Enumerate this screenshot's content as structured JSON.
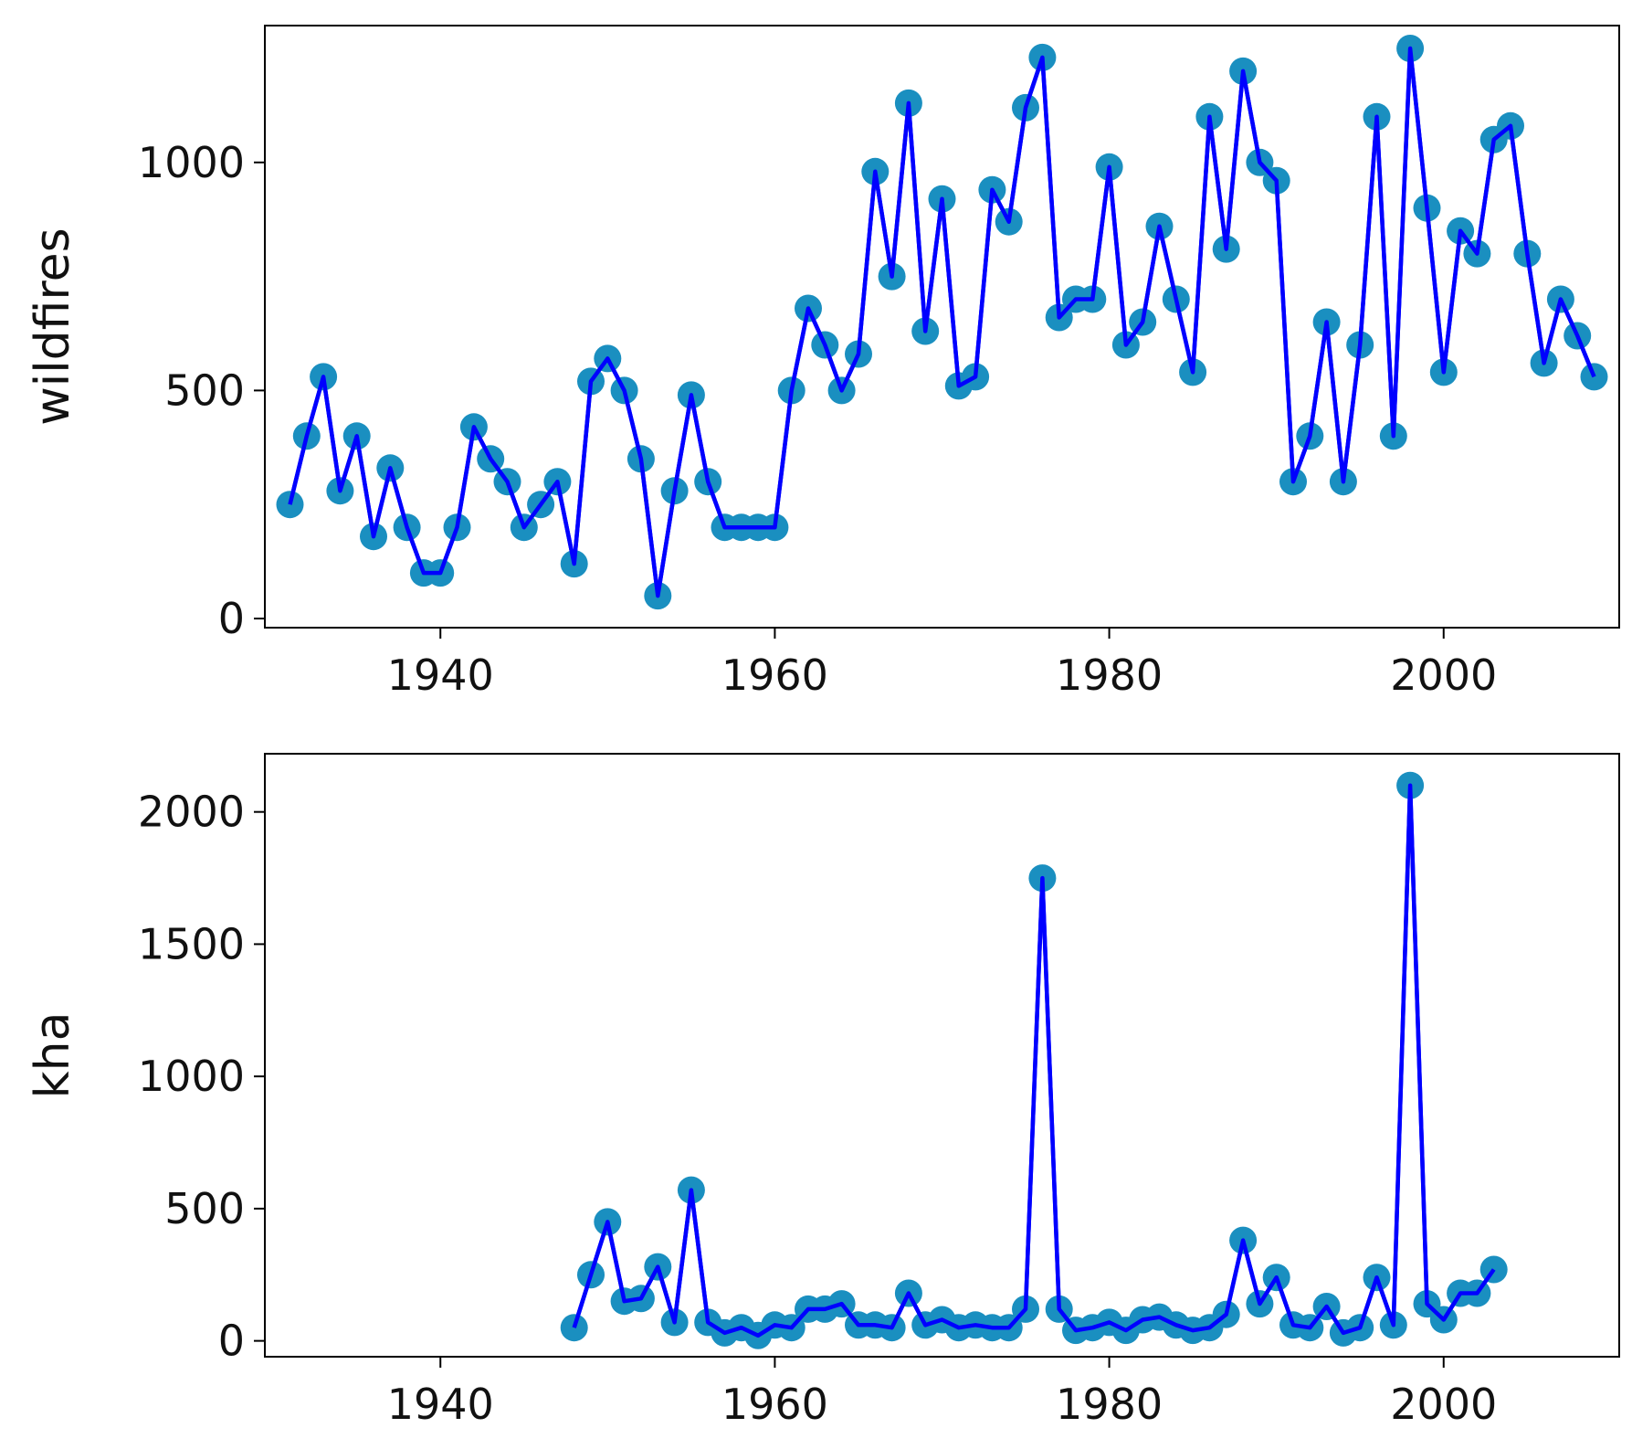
{
  "colors": {
    "line": "#0000ff",
    "marker": "#1a8fc0",
    "axes": "#000000"
  },
  "chart_data": [
    {
      "type": "line",
      "ylabel": "wildfires",
      "xlim": [
        1929.5,
        2010.5
      ],
      "ylim": [
        -20,
        1300
      ],
      "xticks": [
        1940,
        1960,
        1980,
        2000
      ],
      "yticks": [
        0,
        500,
        1000
      ],
      "markers": true,
      "grid": false,
      "series": [
        {
          "x": [
            1931,
            1932,
            1933,
            1934,
            1935,
            1936,
            1937,
            1938,
            1939,
            1940,
            1941,
            1942,
            1943,
            1944,
            1945,
            1946,
            1947,
            1948,
            1949,
            1950,
            1951,
            1952,
            1953,
            1954,
            1955,
            1956,
            1957,
            1958,
            1959,
            1960,
            1961,
            1962,
            1963,
            1964,
            1965,
            1966,
            1967,
            1968,
            1969,
            1970,
            1971,
            1972,
            1973,
            1974,
            1975,
            1976,
            1977,
            1978,
            1979,
            1980,
            1981,
            1982,
            1983,
            1984,
            1985,
            1986,
            1987,
            1988,
            1989,
            1990,
            1991,
            1992,
            1993,
            1994,
            1995,
            1996,
            1997,
            1998,
            1999,
            2000,
            2001,
            2002,
            2003,
            2004,
            2005,
            2006,
            2007,
            2008,
            2009
          ],
          "values": [
            250,
            400,
            530,
            280,
            400,
            180,
            330,
            200,
            100,
            100,
            200,
            420,
            350,
            300,
            200,
            250,
            300,
            120,
            520,
            570,
            500,
            350,
            50,
            280,
            490,
            300,
            200,
            200,
            200,
            200,
            500,
            680,
            600,
            500,
            580,
            980,
            750,
            1130,
            630,
            920,
            510,
            530,
            940,
            870,
            1120,
            1230,
            660,
            700,
            700,
            990,
            600,
            650,
            860,
            700,
            540,
            1100,
            810,
            1200,
            1000,
            960,
            300,
            400,
            650,
            300,
            600,
            1100,
            400,
            1250,
            900,
            540,
            850,
            800,
            1050,
            1080,
            800,
            560,
            700,
            620,
            530
          ]
        }
      ]
    },
    {
      "type": "line",
      "ylabel": "kha",
      "xlim": [
        1929.5,
        2010.5
      ],
      "ylim": [
        -60,
        2220
      ],
      "xticks": [
        1940,
        1960,
        1980,
        2000
      ],
      "yticks": [
        0,
        500,
        1000,
        1500,
        2000
      ],
      "markers": true,
      "grid": false,
      "series": [
        {
          "x": [
            1948,
            1949,
            1950,
            1951,
            1952,
            1953,
            1954,
            1955,
            1956,
            1957,
            1958,
            1959,
            1960,
            1961,
            1962,
            1963,
            1964,
            1965,
            1966,
            1967,
            1968,
            1969,
            1970,
            1971,
            1972,
            1973,
            1974,
            1975,
            1976,
            1977,
            1978,
            1979,
            1980,
            1981,
            1982,
            1983,
            1984,
            1985,
            1986,
            1987,
            1988,
            1989,
            1990,
            1991,
            1992,
            1993,
            1994,
            1995,
            1996,
            1997,
            1998,
            1999,
            2000,
            2001,
            2002,
            2003
          ],
          "values": [
            50,
            250,
            450,
            150,
            160,
            280,
            70,
            570,
            70,
            30,
            50,
            20,
            60,
            50,
            120,
            120,
            140,
            60,
            60,
            50,
            180,
            60,
            80,
            50,
            60,
            50,
            50,
            120,
            1750,
            120,
            40,
            50,
            70,
            40,
            80,
            90,
            60,
            40,
            50,
            100,
            380,
            140,
            240,
            60,
            50,
            130,
            30,
            50,
            240,
            60,
            2100,
            140,
            80,
            180,
            180,
            270
          ]
        }
      ]
    }
  ]
}
